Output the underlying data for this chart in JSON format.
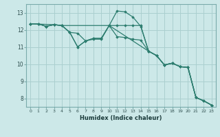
{
  "xlabel": "Humidex (Indice chaleur)",
  "bg_color": "#cce8e8",
  "grid_color": "#aacfcf",
  "line_color": "#2d7d6f",
  "spine_color": "#7aabab",
  "xlim": [
    -0.5,
    23.5
  ],
  "ylim": [
    7.5,
    13.5
  ],
  "xticks": [
    0,
    1,
    2,
    3,
    4,
    5,
    6,
    7,
    8,
    9,
    10,
    11,
    12,
    13,
    14,
    15,
    16,
    17,
    18,
    19,
    20,
    21,
    22,
    23
  ],
  "yticks": [
    8,
    9,
    10,
    11,
    12,
    13
  ],
  "lines": [
    {
      "x": [
        0,
        1,
        2,
        3,
        4,
        5,
        6,
        7,
        8,
        9,
        10,
        11,
        12,
        13,
        14,
        15,
        16,
        17,
        18,
        19,
        20,
        21,
        22,
        23
      ],
      "y": [
        12.35,
        12.35,
        12.2,
        12.3,
        12.25,
        11.85,
        11.0,
        11.35,
        11.5,
        11.5,
        12.25,
        13.1,
        13.05,
        12.75,
        12.2,
        10.75,
        10.5,
        9.95,
        10.05,
        9.85,
        9.8,
        8.05,
        7.85,
        7.6
      ]
    },
    {
      "x": [
        0,
        1,
        2,
        3,
        4,
        5,
        6,
        7,
        8,
        9,
        10,
        11,
        12,
        13,
        14,
        15,
        16,
        17,
        18,
        19,
        20,
        21,
        22,
        23
      ],
      "y": [
        12.35,
        12.35,
        12.2,
        12.3,
        12.25,
        11.85,
        11.0,
        11.35,
        11.5,
        11.5,
        12.25,
        11.6,
        11.55,
        11.45,
        11.4,
        10.75,
        10.5,
        9.95,
        10.05,
        9.85,
        9.8,
        8.05,
        7.85,
        7.6
      ]
    },
    {
      "x": [
        0,
        3,
        4,
        5,
        6,
        7,
        8,
        9,
        10,
        15,
        16,
        17,
        18,
        19,
        20,
        21,
        22,
        23
      ],
      "y": [
        12.35,
        12.3,
        12.25,
        11.85,
        11.8,
        11.35,
        11.45,
        11.45,
        12.25,
        10.75,
        10.5,
        9.95,
        10.05,
        9.85,
        9.8,
        8.05,
        7.85,
        7.6
      ]
    },
    {
      "x": [
        0,
        1,
        2,
        3,
        4,
        10,
        11,
        12,
        13,
        14,
        15,
        16,
        17,
        18,
        19,
        20,
        21,
        22,
        23
      ],
      "y": [
        12.35,
        12.35,
        12.2,
        12.3,
        12.25,
        12.25,
        12.25,
        12.25,
        12.25,
        12.25,
        10.75,
        10.5,
        9.95,
        10.05,
        9.85,
        9.8,
        8.05,
        7.85,
        7.6
      ]
    }
  ]
}
